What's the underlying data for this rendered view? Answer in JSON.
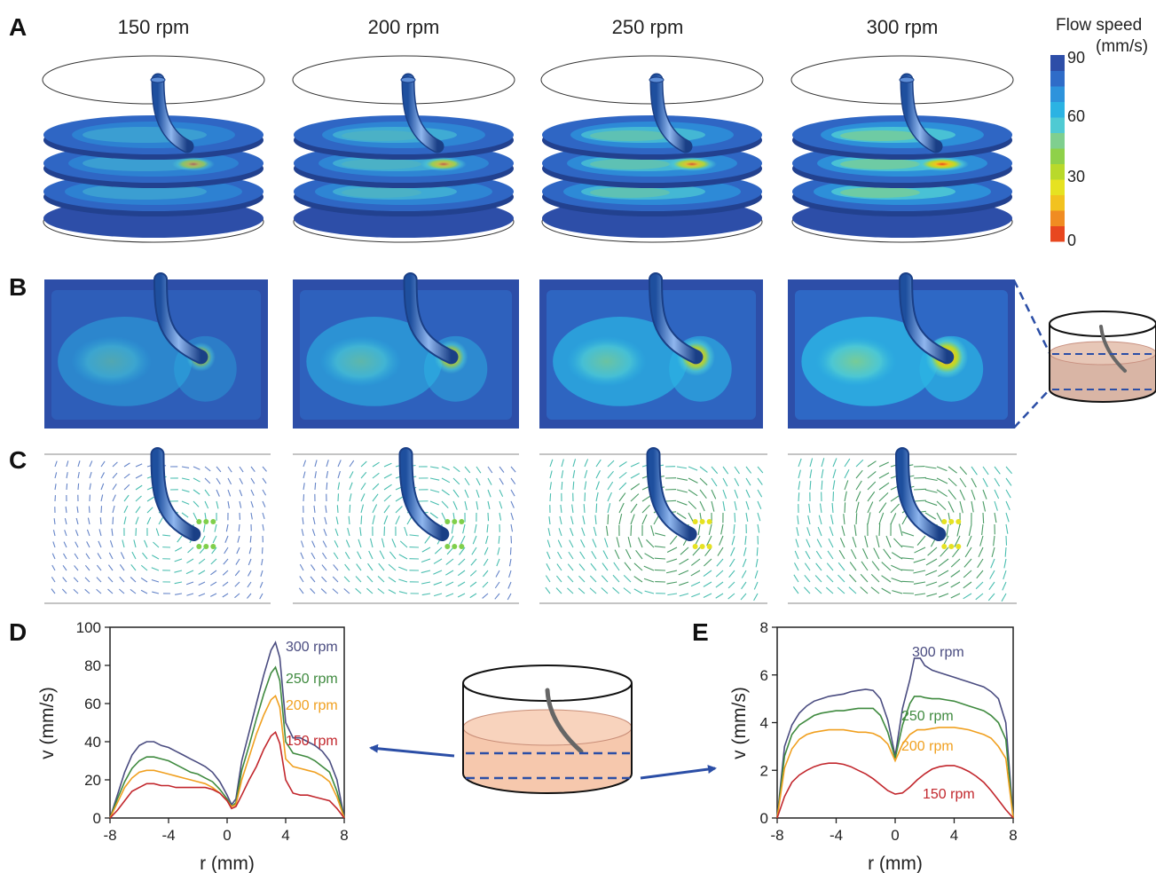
{
  "panels": {
    "A": "A",
    "B": "B",
    "C": "C",
    "D": "D",
    "E": "E"
  },
  "speeds": [
    "150 rpm",
    "200 rpm",
    "250 rpm",
    "300 rpm"
  ],
  "colorbar": {
    "title_line1": "Flow speed",
    "title_line2": "(mm/s)",
    "ticks": [
      "90",
      "60",
      "30",
      "0"
    ],
    "tick_values": [
      90,
      60,
      30,
      0
    ],
    "max": 90,
    "colors": [
      "#2d4ea8",
      "#2f6cc8",
      "#2d93dc",
      "#2bb3e3",
      "#4fcad3",
      "#7fcf8f",
      "#8fd14a",
      "#b9d92b",
      "#e6e221",
      "#f2c21f",
      "#f08c22",
      "#e8471f"
    ]
  },
  "chart_data": [
    {
      "type": "line",
      "xlabel": "r (mm)",
      "ylabel": "v (mm/s)",
      "xlim": [
        -8,
        8
      ],
      "ylim": [
        0,
        100
      ],
      "xticks": [
        "-8",
        "-4",
        "0",
        "4",
        "8"
      ],
      "xtick_values": [
        -8,
        -4,
        0,
        4,
        8
      ],
      "yticks": [
        "0",
        "20",
        "40",
        "60",
        "80",
        "100"
      ],
      "ytick_values": [
        0,
        20,
        40,
        60,
        80,
        100
      ],
      "series": [
        {
          "name": "300 rpm",
          "color": "#4a4c80",
          "x": [
            -8,
            -7.5,
            -7,
            -6.5,
            -6,
            -5.5,
            -5,
            -4.5,
            -4,
            -3.5,
            -3,
            -2.5,
            -2,
            -1.5,
            -1,
            -0.5,
            0,
            0.3,
            0.6,
            1,
            1.5,
            2,
            2.5,
            3,
            3.3,
            3.6,
            4,
            4.5,
            5,
            5.5,
            6,
            6.5,
            7,
            7.5,
            8
          ],
          "y": [
            0,
            12,
            24,
            33,
            38,
            40,
            40,
            38,
            37,
            35,
            33,
            31,
            29,
            27,
            24,
            19,
            12,
            7,
            10,
            30,
            45,
            60,
            75,
            88,
            92,
            84,
            50,
            42,
            42,
            40,
            38,
            35,
            30,
            20,
            0
          ]
        },
        {
          "name": "250 rpm",
          "color": "#3f8a3f",
          "x": [
            -8,
            -7.5,
            -7,
            -6.5,
            -6,
            -5.5,
            -5,
            -4.5,
            -4,
            -3.5,
            -3,
            -2.5,
            -2,
            -1.5,
            -1,
            -0.5,
            0,
            0.3,
            0.6,
            1,
            1.5,
            2,
            2.5,
            3,
            3.3,
            3.6,
            4,
            4.5,
            5,
            5.5,
            6,
            6.5,
            7,
            7.5,
            8
          ],
          "y": [
            0,
            10,
            19,
            26,
            30,
            32,
            32,
            31,
            30,
            28,
            26,
            24,
            23,
            21,
            19,
            15,
            10,
            6,
            8,
            25,
            38,
            52,
            65,
            76,
            79,
            72,
            40,
            34,
            33,
            32,
            30,
            27,
            24,
            14,
            0
          ]
        },
        {
          "name": "200 rpm",
          "color": "#f0a020",
          "x": [
            -8,
            -7.5,
            -7,
            -6.5,
            -6,
            -5.5,
            -5,
            -4.5,
            -4,
            -3.5,
            -3,
            -2.5,
            -2,
            -1.5,
            -1,
            -0.5,
            0,
            0.3,
            0.6,
            1,
            1.5,
            2,
            2.5,
            3,
            3.3,
            3.6,
            4,
            4.5,
            5,
            5.5,
            6,
            6.5,
            7,
            7.5,
            8
          ],
          "y": [
            0,
            8,
            16,
            21,
            24,
            25,
            25,
            24,
            23,
            22,
            21,
            20,
            19,
            18,
            16,
            13,
            9,
            6,
            7,
            20,
            32,
            44,
            54,
            62,
            64,
            58,
            31,
            27,
            26,
            25,
            24,
            22,
            19,
            11,
            0
          ]
        },
        {
          "name": "150 rpm",
          "color": "#c2272d",
          "x": [
            -8,
            -7.5,
            -7,
            -6.5,
            -6,
            -5.5,
            -5,
            -4.5,
            -4,
            -3.5,
            -3,
            -2.5,
            -2,
            -1.5,
            -1,
            -0.5,
            0,
            0.3,
            0.6,
            1,
            1.5,
            2,
            2.5,
            3,
            3.3,
            3.6,
            4,
            4.5,
            5,
            5.5,
            6,
            6.5,
            7,
            7.5,
            8
          ],
          "y": [
            0,
            4,
            9,
            14,
            16,
            18,
            18,
            17,
            17,
            16,
            16,
            16,
            16,
            16,
            15,
            13,
            9,
            5,
            6,
            12,
            20,
            27,
            36,
            43,
            45,
            39,
            20,
            13,
            12,
            12,
            11,
            10,
            9,
            5,
            0
          ]
        }
      ]
    },
    {
      "type": "line",
      "xlabel": "r (mm)",
      "ylabel": "v (mm/s)",
      "xlim": [
        -8,
        8
      ],
      "ylim": [
        0,
        8
      ],
      "xticks": [
        "-8",
        "-4",
        "0",
        "4",
        "8"
      ],
      "xtick_values": [
        -8,
        -4,
        0,
        4,
        8
      ],
      "yticks": [
        "0",
        "2",
        "4",
        "6",
        "8"
      ],
      "ytick_values": [
        0,
        2,
        4,
        6,
        8
      ],
      "series": [
        {
          "name": "300 rpm",
          "color": "#4a4c80",
          "x": [
            -8,
            -7.5,
            -7,
            -6.5,
            -6,
            -5.5,
            -5,
            -4.5,
            -4,
            -3.5,
            -3,
            -2.5,
            -2,
            -1.5,
            -1,
            -0.5,
            0,
            0.5,
            1,
            1.3,
            1.7,
            2,
            2.5,
            3,
            3.5,
            4,
            4.5,
            5,
            5.5,
            6,
            6.5,
            7,
            7.5,
            8
          ],
          "y": [
            0,
            3,
            3.9,
            4.4,
            4.7,
            4.9,
            5.0,
            5.1,
            5.15,
            5.2,
            5.3,
            5.35,
            5.4,
            5.35,
            5.0,
            4.1,
            2.6,
            4.6,
            5.8,
            6.7,
            6.7,
            6.4,
            6.2,
            6.1,
            6.0,
            5.9,
            5.8,
            5.7,
            5.6,
            5.5,
            5.3,
            5.0,
            4.0,
            0
          ]
        },
        {
          "name": "250 rpm",
          "color": "#3f8a3f",
          "x": [
            -8,
            -7.5,
            -7,
            -6.5,
            -6,
            -5.5,
            -5,
            -4.5,
            -4,
            -3.5,
            -3,
            -2.5,
            -2,
            -1.5,
            -1,
            -0.5,
            0,
            0.5,
            1,
            1.3,
            1.7,
            2,
            2.5,
            3,
            3.5,
            4,
            4.5,
            5,
            5.5,
            6,
            6.5,
            7,
            7.5,
            8
          ],
          "y": [
            0,
            2.6,
            3.5,
            3.9,
            4.1,
            4.3,
            4.4,
            4.45,
            4.5,
            4.5,
            4.55,
            4.6,
            4.6,
            4.6,
            4.3,
            3.6,
            2.5,
            3.9,
            4.8,
            5.1,
            5.1,
            5.05,
            5.0,
            5.0,
            4.95,
            4.9,
            4.8,
            4.7,
            4.6,
            4.5,
            4.3,
            4.0,
            3.3,
            0
          ]
        },
        {
          "name": "200 rpm",
          "color": "#f0a020",
          "x": [
            -8,
            -7.5,
            -7,
            -6.5,
            -6,
            -5.5,
            -5,
            -4.5,
            -4,
            -3.5,
            -3,
            -2.5,
            -2,
            -1.5,
            -1,
            -0.5,
            0,
            0.5,
            1,
            1.5,
            2,
            2.5,
            3,
            3.5,
            4,
            4.5,
            5,
            5.5,
            6,
            6.5,
            7,
            7.5,
            8
          ],
          "y": [
            0,
            2.1,
            2.9,
            3.3,
            3.5,
            3.6,
            3.65,
            3.7,
            3.7,
            3.7,
            3.65,
            3.6,
            3.6,
            3.55,
            3.4,
            3.1,
            2.4,
            3.1,
            3.5,
            3.7,
            3.7,
            3.75,
            3.8,
            3.8,
            3.8,
            3.75,
            3.7,
            3.6,
            3.5,
            3.35,
            3.0,
            2.5,
            0
          ]
        },
        {
          "name": "150 rpm",
          "color": "#c2272d",
          "x": [
            -8,
            -7.5,
            -7,
            -6.5,
            -6,
            -5.5,
            -5,
            -4.5,
            -4,
            -3.5,
            -3,
            -2.5,
            -2,
            -1.5,
            -1,
            -0.5,
            0,
            0.5,
            1,
            1.5,
            2,
            2.5,
            3,
            3.5,
            4,
            4.5,
            5,
            5.5,
            6,
            6.5,
            7,
            7.5,
            8
          ],
          "y": [
            0,
            0.9,
            1.5,
            1.8,
            2.0,
            2.15,
            2.25,
            2.3,
            2.3,
            2.25,
            2.15,
            2.0,
            1.85,
            1.65,
            1.4,
            1.15,
            1.0,
            1.05,
            1.3,
            1.6,
            1.85,
            2.05,
            2.15,
            2.2,
            2.2,
            2.1,
            1.95,
            1.75,
            1.5,
            1.15,
            0.75,
            0.35,
            0
          ]
        }
      ]
    }
  ]
}
